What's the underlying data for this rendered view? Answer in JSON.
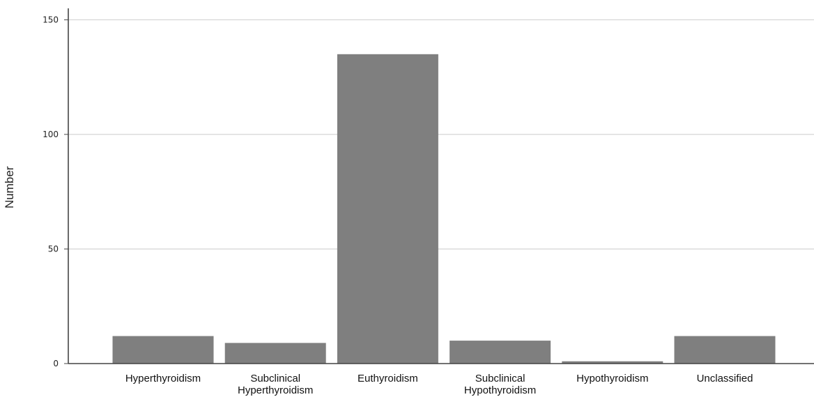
{
  "chart_data": {
    "type": "bar",
    "title": "",
    "xlabel": "",
    "ylabel": "Number",
    "ylim": [
      0,
      155
    ],
    "yticks": [
      0,
      50,
      100,
      150
    ],
    "grid": true,
    "categories": [
      [
        "Hyperthyroidism"
      ],
      [
        "Subclinical",
        "Hyperthyroidism"
      ],
      [
        "Euthyroidism"
      ],
      [
        "Subclinical",
        "Hypothyroidism"
      ],
      [
        "Hypothyroidism"
      ],
      [
        "Unclassified"
      ]
    ],
    "values": [
      12,
      9,
      135,
      10,
      1,
      12
    ],
    "colors": {
      "bar": "#7f7f7f",
      "axis": "#444444",
      "grid": "#d3d3d3",
      "background": "#ffffff"
    }
  }
}
